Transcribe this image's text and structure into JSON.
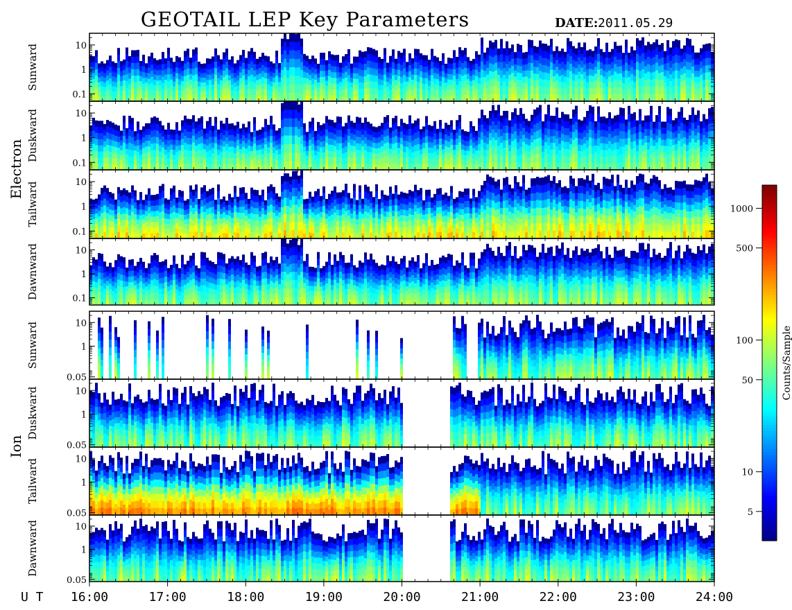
{
  "title": "GEOTAIL LEP Key Parameters",
  "date_label": "DATE:",
  "date_value": "2011.05.29",
  "chart_data": {
    "type": "heatmap",
    "x": {
      "label": "U T",
      "range_hours": [
        16,
        24
      ],
      "ticks": [
        "16:00",
        "17:00",
        "18:00",
        "19:00",
        "20:00",
        "21:00",
        "22:00",
        "23:00",
        "24:00"
      ]
    },
    "groups": [
      {
        "name": "Electron",
        "y_range_log": [
          0.05,
          30
        ],
        "y_ticks": [
          "10",
          "1",
          "0.1"
        ],
        "y_tick_values": [
          10,
          1,
          0.1
        ],
        "panels": [
          "Sunward",
          "Duskward",
          "Tailward",
          "Dawnward"
        ]
      },
      {
        "name": "Ion",
        "y_range_log": [
          0.04,
          30
        ],
        "y_ticks": [
          "10",
          "1",
          "0.05"
        ],
        "y_tick_values": [
          10,
          1,
          0.05
        ],
        "panels": [
          "Sunward",
          "Duskward",
          "Tailward",
          "Dawnward"
        ]
      }
    ],
    "colorbar": {
      "label": "Counts/Sample",
      "scale": "log",
      "range": [
        3,
        1500
      ],
      "ticks": [
        "1000",
        "500",
        "100",
        "50",
        "10",
        "5"
      ],
      "tick_values": [
        1000,
        500,
        100,
        50,
        10,
        5
      ],
      "colormap": "jet"
    }
  },
  "colors": {
    "frame": "#000000",
    "background": "#ffffff",
    "tick_label": "#000000"
  }
}
